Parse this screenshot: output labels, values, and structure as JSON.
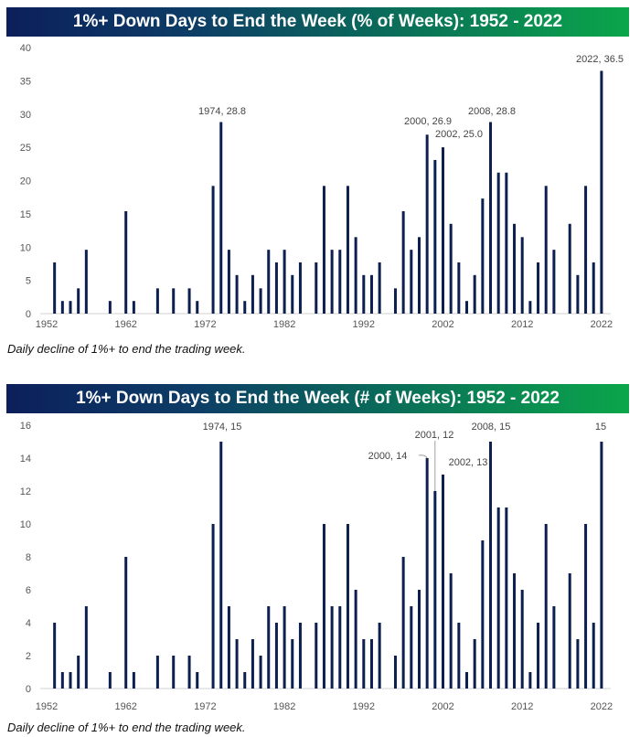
{
  "chart_data": [
    {
      "type": "bar",
      "title": "1%+ Down Days to End the Week (% of Weeks): 1952 - 2022",
      "footnote": "Daily decline of 1%+ to end the trading week.",
      "x": [
        1952,
        1953,
        1954,
        1955,
        1956,
        1957,
        1958,
        1959,
        1960,
        1961,
        1962,
        1963,
        1964,
        1965,
        1966,
        1967,
        1968,
        1969,
        1970,
        1971,
        1972,
        1973,
        1974,
        1975,
        1976,
        1977,
        1978,
        1979,
        1980,
        1981,
        1982,
        1983,
        1984,
        1985,
        1986,
        1987,
        1988,
        1989,
        1990,
        1991,
        1992,
        1993,
        1994,
        1995,
        1996,
        1997,
        1998,
        1999,
        2000,
        2001,
        2002,
        2003,
        2004,
        2005,
        2006,
        2007,
        2008,
        2009,
        2010,
        2011,
        2012,
        2013,
        2014,
        2015,
        2016,
        2017,
        2018,
        2019,
        2020,
        2021,
        2022
      ],
      "values": [
        0,
        7.7,
        1.9,
        1.9,
        3.8,
        9.6,
        0,
        0,
        1.9,
        0,
        15.4,
        1.9,
        0,
        0,
        3.8,
        0,
        3.8,
        0,
        3.8,
        1.9,
        0,
        19.2,
        28.8,
        9.6,
        5.8,
        1.9,
        5.8,
        3.8,
        9.6,
        7.7,
        9.6,
        5.8,
        7.7,
        0,
        7.7,
        19.2,
        9.6,
        9.6,
        19.2,
        11.5,
        5.8,
        5.8,
        7.7,
        0,
        3.8,
        15.4,
        9.6,
        11.5,
        26.9,
        23.1,
        25.0,
        13.5,
        7.7,
        1.9,
        5.8,
        17.3,
        28.8,
        21.2,
        21.2,
        13.5,
        11.5,
        1.9,
        7.7,
        19.2,
        9.6,
        0,
        13.5,
        5.8,
        19.2,
        7.7,
        36.5
      ],
      "ylim": [
        0,
        40
      ],
      "yticks": [
        "0",
        "5",
        "10",
        "15",
        "20",
        "25",
        "30",
        "35",
        "40"
      ],
      "xticks": [
        "1952",
        "1962",
        "1972",
        "1982",
        "1992",
        "2002",
        "2012",
        "2022"
      ],
      "annotations": [
        {
          "year": 1974,
          "text": "1974, 28.8"
        },
        {
          "year": 2000,
          "text": "2000, 26.9"
        },
        {
          "year": 2002,
          "text": "2002, 25.0"
        },
        {
          "year": 2008,
          "text": "2008, 28.8"
        },
        {
          "year": 2022,
          "text": "2022, 36.5"
        }
      ],
      "bar_color": "#0c1f4f",
      "grid": false
    },
    {
      "type": "bar",
      "title": "1%+ Down Days to End the Week (# of Weeks): 1952 - 2022",
      "footnote": "Daily decline of 1%+ to end the trading week.",
      "x": [
        1952,
        1953,
        1954,
        1955,
        1956,
        1957,
        1958,
        1959,
        1960,
        1961,
        1962,
        1963,
        1964,
        1965,
        1966,
        1967,
        1968,
        1969,
        1970,
        1971,
        1972,
        1973,
        1974,
        1975,
        1976,
        1977,
        1978,
        1979,
        1980,
        1981,
        1982,
        1983,
        1984,
        1985,
        1986,
        1987,
        1988,
        1989,
        1990,
        1991,
        1992,
        1993,
        1994,
        1995,
        1996,
        1997,
        1998,
        1999,
        2000,
        2001,
        2002,
        2003,
        2004,
        2005,
        2006,
        2007,
        2008,
        2009,
        2010,
        2011,
        2012,
        2013,
        2014,
        2015,
        2016,
        2017,
        2018,
        2019,
        2020,
        2021,
        2022
      ],
      "values": [
        0,
        4,
        1,
        1,
        2,
        5,
        0,
        0,
        1,
        0,
        8,
        1,
        0,
        0,
        2,
        0,
        2,
        0,
        2,
        1,
        0,
        10,
        15,
        5,
        3,
        1,
        3,
        2,
        5,
        4,
        5,
        3,
        4,
        0,
        4,
        10,
        5,
        5,
        10,
        6,
        3,
        3,
        4,
        0,
        2,
        8,
        5,
        6,
        14,
        12,
        13,
        7,
        4,
        1,
        3,
        9,
        15,
        11,
        11,
        7,
        6,
        1,
        4,
        10,
        5,
        0,
        7,
        3,
        10,
        4,
        15
      ],
      "ylim": [
        0,
        16
      ],
      "yticks": [
        "0",
        "2",
        "4",
        "6",
        "8",
        "10",
        "12",
        "14",
        "16"
      ],
      "xticks": [
        "1952",
        "1962",
        "1972",
        "1982",
        "1992",
        "2002",
        "2012",
        "2022"
      ],
      "annotations": [
        {
          "year": 1974,
          "text": "1974, 15"
        },
        {
          "year": 2000,
          "text": "2000, 14"
        },
        {
          "year": 2001,
          "text": "2001, 12"
        },
        {
          "year": 2002,
          "text": "2002, 13"
        },
        {
          "year": 2008,
          "text": "2008, 15"
        },
        {
          "year": 2022,
          "text": "15"
        }
      ],
      "bar_color": "#0c1f4f",
      "grid": false
    }
  ]
}
